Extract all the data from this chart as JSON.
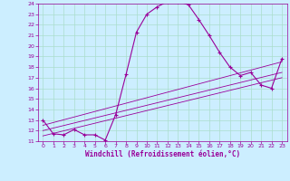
{
  "xlabel": "Windchill (Refroidissement éolien,°C)",
  "xlim": [
    -0.5,
    23.5
  ],
  "ylim": [
    11,
    24
  ],
  "yticks": [
    11,
    12,
    13,
    14,
    15,
    16,
    17,
    18,
    19,
    20,
    21,
    22,
    23,
    24
  ],
  "xticks": [
    0,
    1,
    2,
    3,
    4,
    5,
    6,
    7,
    8,
    9,
    10,
    11,
    12,
    13,
    14,
    15,
    16,
    17,
    18,
    19,
    20,
    21,
    22,
    23
  ],
  "bg_color": "#cceeff",
  "line_color": "#990099",
  "grid_color": "#aaddcc",
  "curve_x": [
    0,
    1,
    2,
    3,
    4,
    5,
    6,
    7,
    8,
    9,
    10,
    11,
    12,
    13,
    14,
    15,
    16,
    17,
    18,
    19,
    20,
    21,
    22,
    23
  ],
  "curve_y": [
    13.0,
    11.7,
    11.6,
    12.1,
    11.6,
    11.6,
    11.1,
    13.5,
    17.3,
    21.3,
    23.0,
    23.7,
    24.2,
    24.2,
    23.9,
    22.5,
    21.0,
    19.4,
    18.0,
    17.2,
    17.5,
    16.3,
    16.0,
    18.8
  ],
  "diag_lines": [
    {
      "x": [
        0,
        23
      ],
      "y": [
        11.5,
        17.0
      ]
    },
    {
      "x": [
        0,
        23
      ],
      "y": [
        12.0,
        17.5
      ]
    },
    {
      "x": [
        0,
        23
      ],
      "y": [
        12.5,
        18.5
      ]
    }
  ],
  "tick_fontsize": 4.5,
  "xlabel_fontsize": 5.5,
  "marker": "+",
  "markersize": 3.5,
  "linewidth": 0.8
}
